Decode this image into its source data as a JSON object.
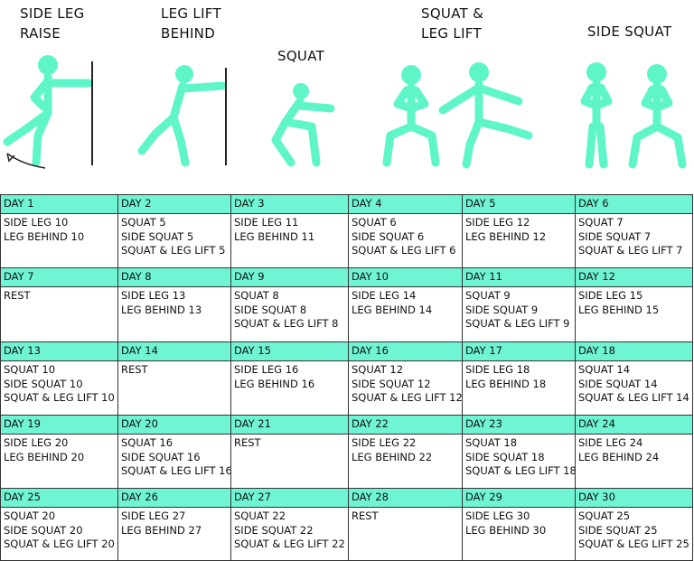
{
  "exercises": [
    {
      "lines": [
        "SIDE LEG",
        "RAISE"
      ]
    },
    {
      "lines": [
        "LEG LIFT",
        "BEHIND"
      ]
    },
    {
      "lines": [
        "SQUAT"
      ]
    },
    {
      "lines": [
        "SQUAT &",
        "LEG LIFT"
      ]
    },
    {
      "lines": [
        "SIDE SQUAT"
      ]
    }
  ],
  "table": {
    "rows": [
      [
        {
          "day": "DAY 1",
          "lines": [
            "SIDE LEG 10",
            "LEG BEHIND 10"
          ]
        },
        {
          "day": "DAY 2",
          "lines": [
            "SQUAT 5",
            "SIDE SQUAT 5",
            "SQUAT & LEG LIFT 5"
          ]
        },
        {
          "day": "DAY 3",
          "lines": [
            "SIDE LEG 11",
            "LEG BEHIND 11"
          ]
        },
        {
          "day": "DAY 4",
          "lines": [
            "SQUAT 6",
            "SIDE SQUAT 6",
            "SQUAT & LEG LIFT 6"
          ]
        },
        {
          "day": "DAY 5",
          "lines": [
            "SIDE LEG 12",
            "LEG BEHIND 12"
          ]
        },
        {
          "day": "DAY 6",
          "lines": [
            "SQUAT 7",
            "SIDE SQUAT 7",
            "SQUAT & LEG LIFT 7"
          ]
        }
      ],
      [
        {
          "day": "DAY 7",
          "lines": [
            "REST"
          ]
        },
        {
          "day": "DAY 8",
          "lines": [
            "SIDE LEG 13",
            "LEG BEHIND 13"
          ]
        },
        {
          "day": "DAY 9",
          "lines": [
            "SQUAT 8",
            "SIDE SQUAT 8",
            "SQUAT & LEG LIFT 8"
          ]
        },
        {
          "day": "DAY 10",
          "lines": [
            "SIDE LEG 14",
            "LEG BEHIND 14"
          ]
        },
        {
          "day": "DAY 11",
          "lines": [
            "SQUAT 9",
            "SIDE SQUAT 9",
            "SQUAT & LEG LIFT 9"
          ]
        },
        {
          "day": "DAY 12",
          "lines": [
            "SIDE LEG 15",
            "LEG BEHIND 15"
          ]
        }
      ],
      [
        {
          "day": "DAY 13",
          "lines": [
            "SQUAT 10",
            "SIDE SQUAT 10",
            "SQUAT & LEG LIFT 10"
          ]
        },
        {
          "day": "DAY 14",
          "lines": [
            "REST"
          ]
        },
        {
          "day": "DAY 15",
          "lines": [
            "SIDE LEG 16",
            "LEG BEHIND 16"
          ]
        },
        {
          "day": "DAY 16",
          "lines": [
            "SQUAT 12",
            "SIDE SQUAT 12",
            "SQUAT & LEG LIFT 12"
          ]
        },
        {
          "day": "DAY 17",
          "lines": [
            "SIDE LEG 18",
            "LEG BEHIND 18"
          ]
        },
        {
          "day": "DAY 18",
          "lines": [
            "SQUAT 14",
            "SIDE SQUAT 14",
            "SQUAT & LEG LIFT 14"
          ]
        }
      ],
      [
        {
          "day": "DAY 19",
          "lines": [
            "SIDE LEG 20",
            "LEG BEHIND 20"
          ]
        },
        {
          "day": "DAY 20",
          "lines": [
            "SQUAT 16",
            "SIDE SQUAT 16",
            "SQUAT & LEG LIFT 16"
          ]
        },
        {
          "day": "DAY 21",
          "lines": [
            "REST"
          ]
        },
        {
          "day": "DAY 22",
          "lines": [
            "SIDE LEG 22",
            "LEG BEHIND 22"
          ]
        },
        {
          "day": "DAY 23",
          "lines": [
            "SQUAT 18",
            "SIDE SQUAT 18",
            "SQUAT & LEG LIFT 18"
          ]
        },
        {
          "day": "DAY 24",
          "lines": [
            "SIDE LEG 24",
            "LEG BEHIND 24"
          ]
        }
      ],
      [
        {
          "day": "DAY 25",
          "lines": [
            "SQUAT 20",
            "SIDE SQUAT 20",
            "SQUAT & LEG LIFT 20"
          ]
        },
        {
          "day": "DAY 26",
          "lines": [
            "SIDE LEG 27",
            "LEG BEHIND 27"
          ]
        },
        {
          "day": "DAY 27",
          "lines": [
            "SQUAT 22",
            "SIDE SQUAT 22",
            "SQUAT & LEG LIFT 22"
          ]
        },
        {
          "day": "DAY 28",
          "lines": [
            "REST"
          ]
        },
        {
          "day": "DAY 29",
          "lines": [
            "SIDE LEG 30",
            "LEG BEHIND 30"
          ]
        },
        {
          "day": "DAY 30",
          "lines": [
            "SQUAT 25",
            "SIDE SQUAT 25",
            "SQUAT & LEG LIFT 25"
          ]
        }
      ]
    ]
  }
}
